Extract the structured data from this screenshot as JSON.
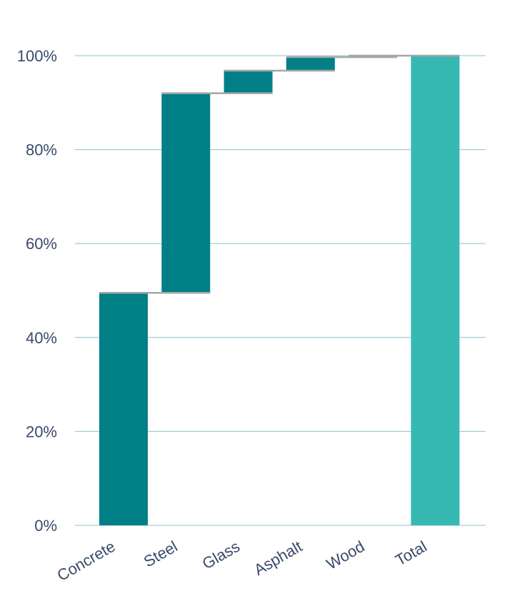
{
  "chart_data": {
    "type": "bar",
    "subtype": "waterfall",
    "title": "",
    "xlabel": "",
    "ylabel": "",
    "ylim": [
      0,
      100
    ],
    "yticks": [
      "0%",
      "20%",
      "40%",
      "60%",
      "80%",
      "100%"
    ],
    "ytick_values": [
      0,
      20,
      40,
      60,
      80,
      100
    ],
    "grid": true,
    "categories": [
      "Concrete",
      "Steel",
      "Glass",
      "Asphalt",
      "Wood",
      "Total"
    ],
    "values": [
      49.5,
      42.5,
      4.8,
      2.9,
      0.3,
      100
    ],
    "kinds": [
      "increase",
      "increase",
      "increase",
      "increase",
      "increase",
      "total"
    ],
    "colors": {
      "increase": "#007f87",
      "total": "#36b9b3",
      "connector": "#a6a6a6",
      "grid": "#8cc4cc",
      "axis_text": "#3a4a6b"
    }
  }
}
